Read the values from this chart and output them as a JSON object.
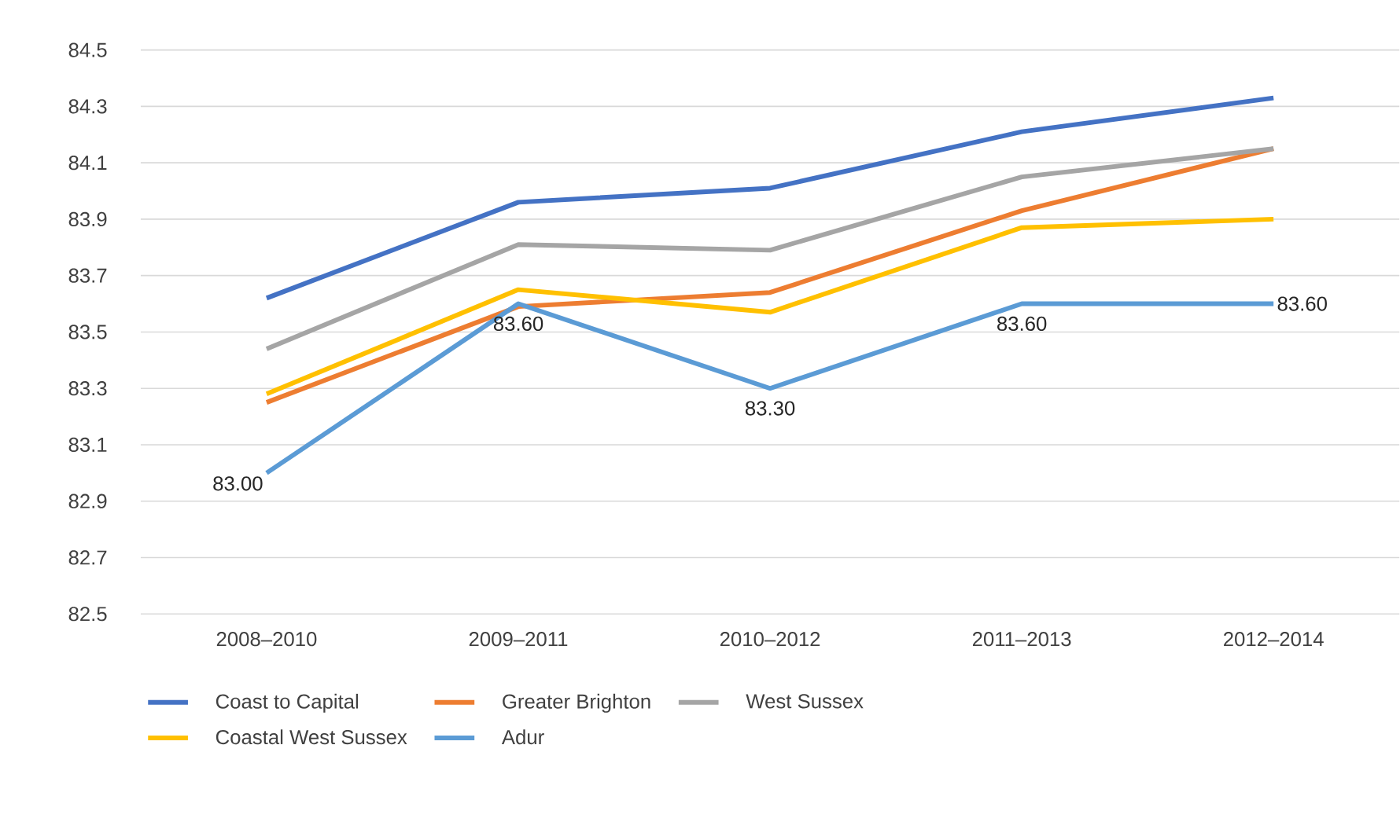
{
  "chart_data": {
    "type": "line",
    "categories": [
      "2008–2010",
      "2009–2011",
      "2010–2012",
      "2011–2013",
      "2012–2014"
    ],
    "series": [
      {
        "name": "Coast to Capital",
        "color": "#4472c4",
        "values": [
          83.62,
          83.96,
          84.01,
          84.21,
          84.33
        ]
      },
      {
        "name": "Greater Brighton",
        "color": "#ed7d31",
        "values": [
          83.25,
          83.59,
          83.64,
          83.93,
          84.15
        ]
      },
      {
        "name": "West Sussex",
        "color": "#a5a5a5",
        "values": [
          83.44,
          83.81,
          83.79,
          84.05,
          84.15
        ]
      },
      {
        "name": "Coastal West Sussex",
        "color": "#ffc000",
        "values": [
          83.28,
          83.65,
          83.57,
          83.87,
          83.9
        ]
      },
      {
        "name": "Adur",
        "color": "#5b9bd5",
        "values": [
          83.0,
          83.6,
          83.3,
          83.6,
          83.6
        ],
        "value_labels": [
          "83.00",
          "83.60",
          "83.30",
          "83.60",
          "83.60"
        ]
      }
    ],
    "ylim": [
      82.5,
      84.5
    ],
    "yticks": [
      82.5,
      82.7,
      82.9,
      83.1,
      83.3,
      83.5,
      83.7,
      83.9,
      84.1,
      84.3,
      84.5
    ],
    "grid": "y",
    "legend": "bottom",
    "marker": "none",
    "line_style": "solid"
  }
}
